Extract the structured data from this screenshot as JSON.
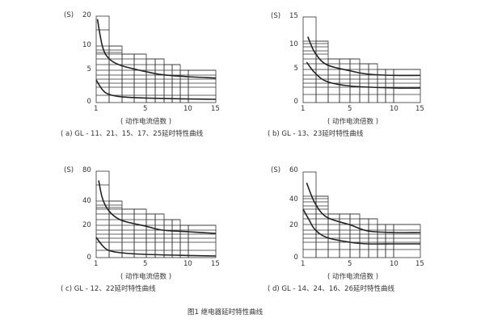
{
  "figure_caption": "图1  继电器延时特性曲线",
  "chart_data": [
    {
      "type": "line",
      "caption": "( a) GL - 11、21、15、17、25延时特性曲线",
      "xlabel": "( 动作电流倍数 )",
      "ylabel": "(S)",
      "x_ticks": [
        "1",
        "5",
        "10",
        "15"
      ],
      "y_ticks": [
        "0",
        "5",
        "10",
        "20"
      ],
      "xlim": [
        1,
        15
      ],
      "ylim": [
        0,
        20
      ],
      "grid": true,
      "series": [
        {
          "x": [
            1.1,
            1.5,
            2,
            3,
            5,
            7,
            10,
            15
          ],
          "y": [
            19,
            10,
            7.5,
            6,
            4.8,
            4.3,
            4,
            3.8
          ]
        },
        {
          "x": [
            1,
            1.5,
            2,
            3,
            5,
            10,
            15
          ],
          "y": [
            3.5,
            2,
            1.3,
            0.9,
            0.7,
            0.55,
            0.5
          ]
        }
      ]
    },
    {
      "type": "line",
      "caption": "( b) GL - 13、23延时特性曲线",
      "xlabel": "( 动作电流倍数 )",
      "ylabel": "(S)",
      "x_ticks": [
        "1",
        "5",
        "10",
        "15"
      ],
      "y_ticks": [
        "0",
        "5",
        "10",
        "15"
      ],
      "xlim": [
        1,
        15
      ],
      "ylim": [
        0,
        15
      ],
      "grid": true,
      "series": [
        {
          "x": [
            1.4,
            2,
            3,
            5,
            7,
            10,
            15
          ],
          "y": [
            11.5,
            8.5,
            6,
            4.8,
            4.3,
            4.1,
            4.1
          ]
        },
        {
          "x": [
            1.3,
            2,
            3,
            5,
            10,
            15
          ],
          "y": [
            6.5,
            4.5,
            3.2,
            2.5,
            2.2,
            2.2
          ]
        }
      ]
    },
    {
      "type": "line",
      "caption": "( c) GL - 12、22延时特性曲线",
      "xlabel": "( 动作电流倍数 )",
      "ylabel": "(S)",
      "x_ticks": [
        "1",
        "5",
        "10",
        "15"
      ],
      "y_ticks": [
        "0",
        "20",
        "40",
        "80"
      ],
      "xlim": [
        1,
        15
      ],
      "ylim": [
        0,
        80
      ],
      "grid": true,
      "series": [
        {
          "x": [
            1.2,
            1.5,
            2,
            3,
            5,
            7,
            10,
            15
          ],
          "y": [
            68,
            45,
            33,
            25,
            20,
            17.5,
            16.5,
            15.5
          ]
        },
        {
          "x": [
            1,
            1.5,
            2,
            3,
            5,
            10,
            15
          ],
          "y": [
            13,
            8,
            5,
            3.5,
            2.5,
            1.8,
            1.5
          ]
        }
      ]
    },
    {
      "type": "line",
      "caption": "( d) GL - 14、24、16、26延时特性曲线",
      "xlabel": "( 动作电流倍数 )",
      "ylabel": "(S)",
      "x_ticks": [
        "1",
        "5",
        "10",
        "15"
      ],
      "y_ticks": [
        "0",
        "20",
        "40",
        "60"
      ],
      "xlim": [
        1,
        15
      ],
      "ylim": [
        0,
        60
      ],
      "grid": true,
      "series": [
        {
          "x": [
            1.3,
            2,
            3,
            5,
            7,
            10,
            15
          ],
          "y": [
            52,
            38,
            27,
            21,
            17,
            16,
            16
          ]
        },
        {
          "x": [
            1,
            1.5,
            2,
            3,
            5,
            7,
            10,
            15
          ],
          "y": [
            33,
            25,
            18,
            13,
            10,
            9,
            9,
            9
          ]
        }
      ]
    }
  ]
}
